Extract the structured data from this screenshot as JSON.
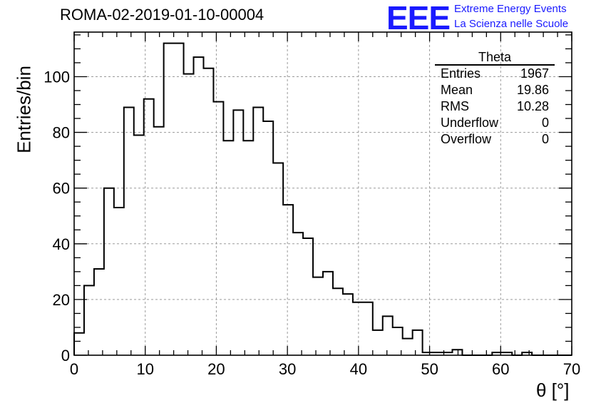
{
  "title": "ROMA-02-2019-01-10-00004",
  "logo": {
    "mark": "EEE",
    "line1": "Extreme Energy Events",
    "line2": "La Scienza nelle Scuole",
    "color": "#1a1aff"
  },
  "stats": {
    "name": "Theta",
    "rows": [
      {
        "label": "Entries",
        "value": "1967"
      },
      {
        "label": "Mean",
        "value": "19.86"
      },
      {
        "label": "RMS",
        "value": "10.28"
      },
      {
        "label": "Underflow",
        "value": "0"
      },
      {
        "label": "Overflow",
        "value": "0"
      }
    ]
  },
  "chart_data": {
    "type": "bar",
    "style": "step-histogram",
    "xlabel": "θ [°]",
    "ylabel": "Entries/bin",
    "xlim": [
      0,
      70
    ],
    "ylim": [
      0,
      116
    ],
    "xticks": [
      0,
      10,
      20,
      30,
      40,
      50,
      60,
      70
    ],
    "yticks": [
      0,
      20,
      40,
      60,
      80,
      100
    ],
    "grid": true,
    "bin_width": 1.4,
    "bin_edges_start": 0,
    "values": [
      8,
      25,
      31,
      60,
      53,
      89,
      79,
      92,
      82,
      112,
      112,
      101,
      107,
      103,
      91,
      77,
      88,
      77,
      89,
      84,
      69,
      54,
      44,
      42,
      28,
      30,
      24,
      22,
      19,
      19,
      9,
      14,
      10,
      6,
      9,
      1,
      1,
      1,
      2,
      0,
      0,
      0,
      1,
      1,
      0,
      1,
      0,
      0,
      0,
      0
    ]
  }
}
